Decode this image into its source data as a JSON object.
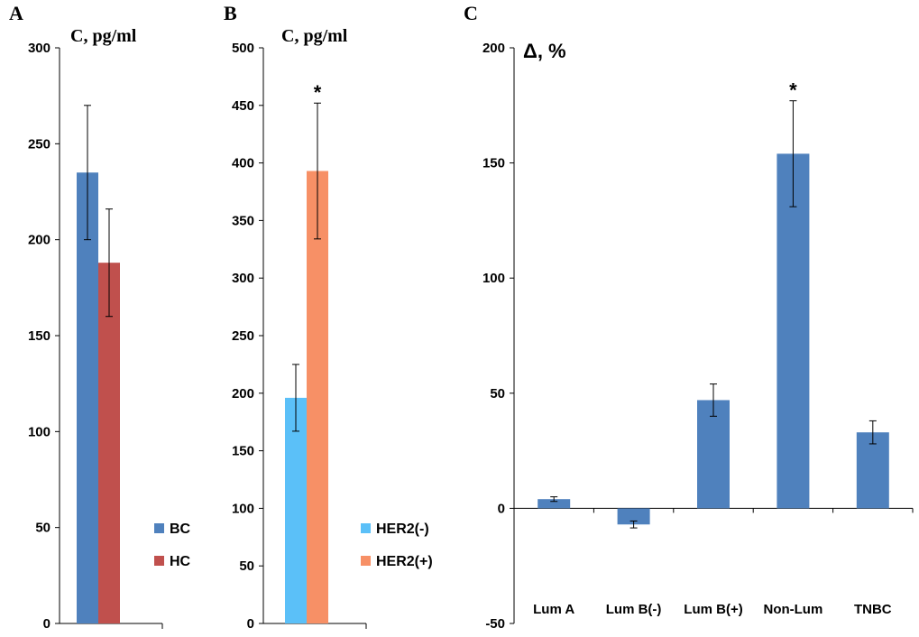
{
  "chart_data": [
    {
      "panel": "A",
      "type": "bar",
      "ylabel": "C, pg/ml",
      "ylim": [
        0,
        300
      ],
      "yticks": [
        0,
        50,
        100,
        150,
        200,
        250,
        300
      ],
      "legend_position": "right",
      "series": [
        {
          "name": "BC",
          "value": 235,
          "error": 35,
          "color": "#4F81BD"
        },
        {
          "name": "HC",
          "value": 188,
          "error": 28,
          "color": "#C0504D"
        }
      ]
    },
    {
      "panel": "B",
      "type": "bar",
      "ylabel": "C, pg/ml",
      "ylim": [
        0,
        500
      ],
      "yticks": [
        0,
        50,
        100,
        150,
        200,
        250,
        300,
        350,
        400,
        450,
        500
      ],
      "legend_position": "right",
      "series": [
        {
          "name": "HER2(-)",
          "value": 196,
          "error": 29,
          "color": "#5BC0F8"
        },
        {
          "name": "HER2(+)",
          "value": 393,
          "error": 59,
          "color": "#F79066",
          "annotation": "*"
        }
      ]
    },
    {
      "panel": "C",
      "type": "bar",
      "ylabel": "Δ, %",
      "ylim": [
        -50,
        200
      ],
      "yticks": [
        -50,
        0,
        50,
        100,
        150,
        200
      ],
      "color": "#4F81BD",
      "categories": [
        "Lum A",
        "Lum B(-)",
        "Lum B(+)",
        "Non-Lum",
        "TNBC"
      ],
      "values": [
        4,
        -7,
        47,
        154,
        33
      ],
      "errors": [
        1,
        1.5,
        7,
        23,
        5
      ],
      "annotations": [
        "",
        "",
        "",
        "*",
        ""
      ]
    }
  ]
}
